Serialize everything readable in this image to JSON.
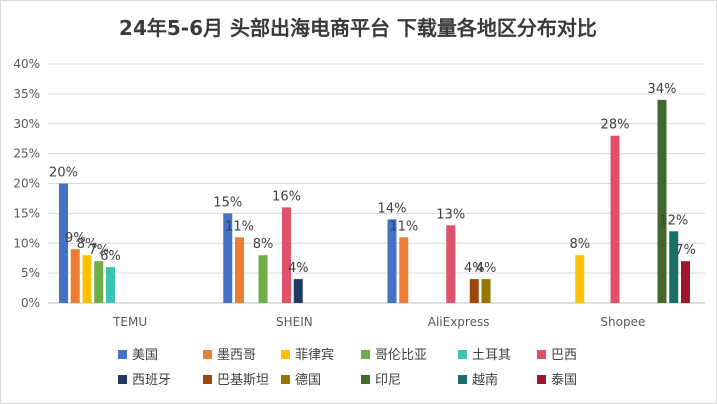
{
  "chart_data": {
    "type": "bar",
    "title": "24年5-6月 头部出海电商平台 下载量各地区分布对比",
    "xlabel": "",
    "ylabel": "",
    "ylim": [
      0,
      40
    ],
    "yticks": [
      "0%",
      "5%",
      "10%",
      "15%",
      "20%",
      "25%",
      "30%",
      "35%",
      "40%"
    ],
    "grid": true,
    "legend_position": "bottom",
    "categories": [
      "TEMU",
      "SHEIN",
      "AliExpress",
      "Shopee"
    ],
    "series": [
      {
        "name": "美国",
        "color": "#4472C4",
        "values": [
          20,
          15,
          14,
          null
        ],
        "labels": [
          "20%",
          "15%",
          "14%",
          ""
        ]
      },
      {
        "name": "墨西哥",
        "color": "#ED7D31",
        "values": [
          9,
          11,
          11,
          null
        ],
        "labels": [
          "9%",
          "11%",
          "11%",
          ""
        ]
      },
      {
        "name": "菲律宾",
        "color": "#FFC000",
        "values": [
          8,
          null,
          null,
          8
        ],
        "labels": [
          "8%",
          "",
          "",
          "8%"
        ]
      },
      {
        "name": "哥伦比亚",
        "color": "#70AD47",
        "values": [
          7,
          8,
          null,
          null
        ],
        "labels": [
          "7%",
          "8%",
          "",
          ""
        ]
      },
      {
        "name": "土耳其",
        "color": "#3BC4B4",
        "values": [
          6,
          null,
          null,
          null
        ],
        "labels": [
          "6%",
          "",
          "",
          ""
        ]
      },
      {
        "name": "巴西",
        "color": "#E0506A",
        "values": [
          null,
          16,
          13,
          28
        ],
        "labels": [
          "",
          "16%",
          "13%",
          "28%"
        ]
      },
      {
        "name": "西班牙",
        "color": "#203864",
        "values": [
          null,
          4,
          null,
          null
        ],
        "labels": [
          "",
          "4%",
          "",
          ""
        ]
      },
      {
        "name": "巴基斯坦",
        "color": "#9E480E",
        "values": [
          null,
          null,
          4,
          null
        ],
        "labels": [
          "",
          "",
          "4%",
          ""
        ]
      },
      {
        "name": "德国",
        "color": "#997300",
        "values": [
          null,
          null,
          4,
          null
        ],
        "labels": [
          "",
          "",
          "4%",
          ""
        ]
      },
      {
        "name": "印尼",
        "color": "#43682B",
        "values": [
          null,
          null,
          null,
          34
        ],
        "labels": [
          "",
          "",
          "",
          "34%"
        ]
      },
      {
        "name": "越南",
        "color": "#1A6E68",
        "values": [
          null,
          null,
          null,
          12
        ],
        "labels": [
          "",
          "",
          "",
          "12%"
        ]
      },
      {
        "name": "泰国",
        "color": "#A0182E",
        "values": [
          null,
          null,
          null,
          7
        ],
        "labels": [
          "",
          "",
          "",
          "7%"
        ]
      }
    ]
  }
}
